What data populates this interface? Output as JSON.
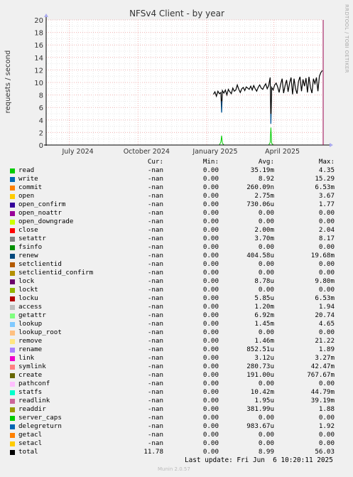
{
  "chart_data": {
    "type": "line",
    "title": "NFSv4 Client - by year",
    "ylabel": "requests / second",
    "ylim": [
      0,
      20
    ],
    "yticks": [
      0,
      2,
      4,
      6,
      8,
      10,
      12,
      14,
      16,
      18,
      20
    ],
    "xrange": [
      "2024-05-31",
      "2025-06-06"
    ],
    "xticks": [
      {
        "label": "July 2024",
        "date": "2024-07-01"
      },
      {
        "label": "October 2024",
        "date": "2024-10-01"
      },
      {
        "label": "January 2025",
        "date": "2025-01-01"
      },
      {
        "label": "April 2025",
        "date": "2025-04-01"
      }
    ],
    "grid": true,
    "series": [
      {
        "name": "total",
        "color": "#000000",
        "x": [
          "2025-01-10",
          "2025-01-12",
          "2025-01-14",
          "2025-01-16",
          "2025-01-18",
          "2025-01-20",
          "2025-01-21",
          "2025-01-22",
          "2025-01-24",
          "2025-01-26",
          "2025-01-28",
          "2025-01-30",
          "2025-02-01",
          "2025-02-03",
          "2025-02-05",
          "2025-02-07",
          "2025-02-09",
          "2025-02-11",
          "2025-02-13",
          "2025-02-15",
          "2025-02-17",
          "2025-02-19",
          "2025-02-21",
          "2025-02-23",
          "2025-02-25",
          "2025-02-27",
          "2025-03-01",
          "2025-03-03",
          "2025-03-05",
          "2025-03-07",
          "2025-03-09",
          "2025-03-11",
          "2025-03-13",
          "2025-03-15",
          "2025-03-17",
          "2025-03-19",
          "2025-03-21",
          "2025-03-23",
          "2025-03-25",
          "2025-03-27",
          "2025-03-28",
          "2025-03-29",
          "2025-03-31",
          "2025-04-02",
          "2025-04-04",
          "2025-04-06",
          "2025-04-08",
          "2025-04-10",
          "2025-04-12",
          "2025-04-14",
          "2025-04-16",
          "2025-04-18",
          "2025-04-20",
          "2025-04-22",
          "2025-04-24",
          "2025-04-26",
          "2025-04-28",
          "2025-04-30",
          "2025-05-02",
          "2025-05-04",
          "2025-05-06",
          "2025-05-08",
          "2025-05-10",
          "2025-05-12",
          "2025-05-14",
          "2025-05-16",
          "2025-05-18",
          "2025-05-20",
          "2025-05-22",
          "2025-05-24",
          "2025-05-26",
          "2025-05-28",
          "2025-05-30",
          "2025-06-01",
          "2025-06-03",
          "2025-06-05"
        ],
        "y": [
          8.1,
          8.5,
          7.8,
          8.6,
          8.2,
          8.4,
          5.2,
          8.7,
          8.3,
          8.8,
          8.0,
          8.9,
          8.5,
          8.2,
          9.1,
          8.6,
          8.8,
          9.6,
          8.9,
          8.4,
          9.0,
          9.2,
          8.7,
          9.3,
          9.1,
          8.9,
          9.4,
          8.8,
          9.5,
          9.0,
          8.6,
          9.2,
          9.6,
          9.1,
          8.9,
          9.4,
          9.8,
          9.0,
          9.5,
          10.8,
          3.4,
          9.2,
          8.8,
          9.6,
          9.9,
          9.3,
          8.4,
          9.7,
          10.6,
          8.3,
          9.5,
          10.4,
          8.5,
          9.9,
          10.8,
          8.1,
          10.6,
          9.0,
          8.2,
          10.2,
          10.9,
          8.6,
          10.5,
          9.4,
          10.7,
          8.4,
          10.9,
          9.2,
          8.3,
          10.6,
          9.8,
          10.8,
          8.6,
          11.0,
          11.6,
          11.9
        ]
      },
      {
        "name": "read",
        "color": "#00cc00",
        "x": [
          "2025-01-10",
          "2025-01-18",
          "2025-01-20",
          "2025-01-21",
          "2025-01-22",
          "2025-01-24",
          "2025-03-25",
          "2025-03-27",
          "2025-03-28",
          "2025-03-29",
          "2025-03-31"
        ],
        "y": [
          0,
          0,
          0.5,
          1.5,
          0.3,
          0,
          0,
          0.4,
          2.8,
          0.3,
          0
        ]
      }
    ]
  },
  "legend": {
    "header": {
      "cur": "Cur:",
      "min": "Min:",
      "avg": "Avg:",
      "max": "Max:"
    },
    "rows": [
      {
        "name": "read",
        "color": "#00cc00",
        "cur": "-nan",
        "min": "0.00",
        "avg": "35.19m",
        "max": "4.35"
      },
      {
        "name": "write",
        "color": "#0066b3",
        "cur": "-nan",
        "min": "0.00",
        "avg": "8.92",
        "max": "15.29"
      },
      {
        "name": "commit",
        "color": "#ff8000",
        "cur": "-nan",
        "min": "0.00",
        "avg": "260.09n",
        "max": "6.53m"
      },
      {
        "name": "open",
        "color": "#ffcc00",
        "cur": "-nan",
        "min": "0.00",
        "avg": "2.75m",
        "max": "3.67"
      },
      {
        "name": "open_confirm",
        "color": "#330099",
        "cur": "-nan",
        "min": "0.00",
        "avg": "730.06u",
        "max": "1.77"
      },
      {
        "name": "open_noattr",
        "color": "#990099",
        "cur": "-nan",
        "min": "0.00",
        "avg": "0.00",
        "max": "0.00"
      },
      {
        "name": "open_downgrade",
        "color": "#ccff00",
        "cur": "-nan",
        "min": "0.00",
        "avg": "0.00",
        "max": "0.00"
      },
      {
        "name": "close",
        "color": "#ff0000",
        "cur": "-nan",
        "min": "0.00",
        "avg": "2.00m",
        "max": "2.04"
      },
      {
        "name": "setattr",
        "color": "#808080",
        "cur": "-nan",
        "min": "0.00",
        "avg": "3.70m",
        "max": "8.17"
      },
      {
        "name": "fsinfo",
        "color": "#008f00",
        "cur": "-nan",
        "min": "0.00",
        "avg": "0.00",
        "max": "0.00"
      },
      {
        "name": "renew",
        "color": "#00487d",
        "cur": "-nan",
        "min": "0.00",
        "avg": "404.58u",
        "max": "19.68m"
      },
      {
        "name": "setclientid",
        "color": "#b35a00",
        "cur": "-nan",
        "min": "0.00",
        "avg": "0.00",
        "max": "0.00"
      },
      {
        "name": "setclientid_confirm",
        "color": "#b38f00",
        "cur": "-nan",
        "min": "0.00",
        "avg": "0.00",
        "max": "0.00"
      },
      {
        "name": "lock",
        "color": "#6b006b",
        "cur": "-nan",
        "min": "0.00",
        "avg": "8.78u",
        "max": "9.80m"
      },
      {
        "name": "lockt",
        "color": "#8fb300",
        "cur": "-nan",
        "min": "0.00",
        "avg": "0.00",
        "max": "0.00"
      },
      {
        "name": "locku",
        "color": "#b30000",
        "cur": "-nan",
        "min": "0.00",
        "avg": "5.85u",
        "max": "6.53m"
      },
      {
        "name": "access",
        "color": "#bebebe",
        "cur": "-nan",
        "min": "0.00",
        "avg": "1.20m",
        "max": "1.94"
      },
      {
        "name": "getattr",
        "color": "#80ff80",
        "cur": "-nan",
        "min": "0.00",
        "avg": "6.92m",
        "max": "20.74"
      },
      {
        "name": "lookup",
        "color": "#80c9ff",
        "cur": "-nan",
        "min": "0.00",
        "avg": "1.45m",
        "max": "4.65"
      },
      {
        "name": "lookup_root",
        "color": "#ffc080",
        "cur": "-nan",
        "min": "0.00",
        "avg": "0.00",
        "max": "0.00"
      },
      {
        "name": "remove",
        "color": "#ffe680",
        "cur": "-nan",
        "min": "0.00",
        "avg": "1.46m",
        "max": "21.22"
      },
      {
        "name": "rename",
        "color": "#aa80ff",
        "cur": "-nan",
        "min": "0.00",
        "avg": "852.51u",
        "max": "1.89"
      },
      {
        "name": "link",
        "color": "#ee00cc",
        "cur": "-nan",
        "min": "0.00",
        "avg": "3.12u",
        "max": "3.27m"
      },
      {
        "name": "symlink",
        "color": "#ff8080",
        "cur": "-nan",
        "min": "0.00",
        "avg": "280.73u",
        "max": "42.47m"
      },
      {
        "name": "create",
        "color": "#666600",
        "cur": "-nan",
        "min": "0.00",
        "avg": "191.00u",
        "max": "767.67m"
      },
      {
        "name": "pathconf",
        "color": "#ffbfff",
        "cur": "-nan",
        "min": "0.00",
        "avg": "0.00",
        "max": "0.00"
      },
      {
        "name": "statfs",
        "color": "#00ffcc",
        "cur": "-nan",
        "min": "0.00",
        "avg": "10.42m",
        "max": "44.79m"
      },
      {
        "name": "readlink",
        "color": "#cc6699",
        "cur": "-nan",
        "min": "0.00",
        "avg": "1.95u",
        "max": "39.19m"
      },
      {
        "name": "readdir",
        "color": "#999900",
        "cur": "-nan",
        "min": "0.00",
        "avg": "381.99u",
        "max": "1.88"
      },
      {
        "name": "server_caps",
        "color": "#00cc00",
        "cur": "-nan",
        "min": "0.00",
        "avg": "0.00",
        "max": "0.00"
      },
      {
        "name": "delegreturn",
        "color": "#0066b3",
        "cur": "-nan",
        "min": "0.00",
        "avg": "983.67u",
        "max": "1.92"
      },
      {
        "name": "getacl",
        "color": "#ff8000",
        "cur": "-nan",
        "min": "0.00",
        "avg": "0.00",
        "max": "0.00"
      },
      {
        "name": "setacl",
        "color": "#ffcc00",
        "cur": "-nan",
        "min": "0.00",
        "avg": "0.00",
        "max": "0.00"
      },
      {
        "name": "total",
        "color": "#000000",
        "cur": "11.78",
        "min": "0.00",
        "avg": "8.99",
        "max": "56.03"
      }
    ]
  },
  "footer": {
    "last_update": "Last update: Fri Jun  6 10:20:11 2025",
    "munin": "Munin 2.0.57",
    "rrdtool": "RRDTOOL / TOBI OETIKER"
  }
}
